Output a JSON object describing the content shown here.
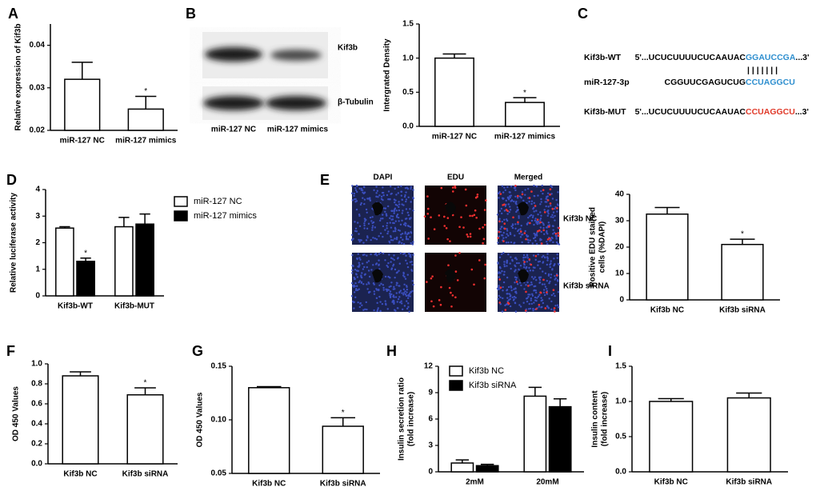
{
  "blot": {
    "panel": "B",
    "bands": [
      "Kif3b",
      "β-Tubulin"
    ],
    "lanes": [
      "miR-127 NC",
      "miR-127 mimics"
    ]
  },
  "sequences": {
    "panel": "C",
    "pairing": "| | | | | | |",
    "rows": [
      {
        "label": "Kif3b-WT",
        "seq": "5'...UCUCUUUUCUCAAUAC",
        "site": "GGAUCCGA",
        "end": "...3'",
        "site_color": "#2f8fcf"
      },
      {
        "label": "miR-127-3p",
        "seq": "CGGUUCGAGUCUG",
        "site": "CCUAGGCU",
        "site_color": "#2f8fcf"
      },
      {
        "label": "Kif3b-MUT",
        "seq": "5'...UCUCUUUUCUCAAUAC",
        "site": "CCUAGGCU",
        "end": "...3'",
        "site_color": "#e03a2a"
      }
    ]
  },
  "microscopy": {
    "panel": "E",
    "channels": [
      "DAPI",
      "EDU",
      "Merged"
    ],
    "conditions": [
      "Kif3b NC",
      "Kif3b siRNA"
    ]
  },
  "chart_data": [
    {
      "panel": "A",
      "type": "bar",
      "ylabel": [
        "Relative expression of Kif3b"
      ],
      "categories": [
        "miR-127 NC",
        "miR-127 mimics"
      ],
      "values": [
        0.032,
        0.025
      ],
      "errors": [
        0.004,
        0.003
      ],
      "color": "#ffffff",
      "ylim": [
        0.02,
        0.045
      ],
      "yticks": [
        0.02,
        0.03,
        0.04
      ],
      "annotations": [
        {
          "text": "*",
          "category": "miR-127 mimics"
        }
      ]
    },
    {
      "type": "bar",
      "ylabel": [
        "Intergrated Density"
      ],
      "categories": [
        "miR-127 NC",
        "miR-127 mimics"
      ],
      "values": [
        1.0,
        0.35
      ],
      "errors": [
        0.06,
        0.07
      ],
      "color": "#ffffff",
      "ylim": [
        0,
        1.5
      ],
      "yticks": [
        {
          "value": 0,
          "label": "0.0"
        },
        0.5,
        {
          "value": 1,
          "label": "1.0"
        },
        1.5
      ],
      "annotations": [
        {
          "text": "*",
          "category": "miR-127 mimics"
        }
      ]
    },
    {
      "panel": "D",
      "type": "grouped_bar",
      "ylabel": [
        "Relative luciferase activity"
      ],
      "categories": [
        "Kif3b-WT",
        "Kif3b-MUT"
      ],
      "series": [
        {
          "name": "miR-127 NC",
          "color": "#ffffff",
          "values": [
            2.55,
            2.6
          ],
          "errors": [
            0.05,
            0.35
          ]
        },
        {
          "name": "miR-127 mimics",
          "color": "#000000",
          "values": [
            1.3,
            2.7
          ],
          "errors": [
            0.12,
            0.38
          ]
        }
      ],
      "ylim": [
        0,
        4
      ],
      "yticks": [
        0,
        1,
        2,
        3,
        4
      ],
      "annotations": [
        {
          "text": "*",
          "category": "Kif3b-WT",
          "series": "miR-127 mimics"
        }
      ]
    },
    {
      "type": "bar",
      "ylabel": [
        "Positive EDU stained",
        "cells (%DAPI)"
      ],
      "categories": [
        "Kif3b NC",
        "Kif3b siRNA"
      ],
      "values": [
        32.5,
        21
      ],
      "errors": [
        2.5,
        2
      ],
      "color": "#ffffff",
      "ylim": [
        0,
        40
      ],
      "yticks": [
        0,
        10,
        20,
        30,
        40
      ],
      "annotations": [
        {
          "text": "*",
          "category": "Kif3b siRNA"
        }
      ]
    },
    {
      "panel": "F",
      "type": "bar",
      "ylabel": [
        "OD 450 Values"
      ],
      "categories": [
        "Kif3b NC",
        "Kif3b siRNA"
      ],
      "values": [
        0.88,
        0.69
      ],
      "errors": [
        0.04,
        0.07
      ],
      "color": "#ffffff",
      "ylim": [
        0,
        1
      ],
      "yticks": [
        {
          "value": 0,
          "label": "0.0"
        },
        0.2,
        0.4,
        0.6,
        0.8,
        {
          "value": 1,
          "label": "1.0"
        }
      ],
      "annotations": [
        {
          "text": "*",
          "category": "Kif3b siRNA"
        }
      ]
    },
    {
      "panel": "G",
      "type": "bar",
      "ylabel": [
        "OD 450 Values"
      ],
      "categories": [
        "Kif3b NC",
        "Kif3b siRNA"
      ],
      "values": [
        0.13,
        0.094
      ],
      "errors": [
        0.001,
        0.008
      ],
      "color": "#ffffff",
      "ylim": [
        0.05,
        0.15
      ],
      "yticks": [
        0.05,
        {
          "value": 0.1,
          "label": "0.10"
        },
        0.15
      ],
      "annotations": [
        {
          "text": "*",
          "category": "Kif3b siRNA"
        }
      ]
    },
    {
      "panel": "H",
      "type": "grouped_bar",
      "ylabel": [
        "Insulin secretion ratio",
        "(fold increase)"
      ],
      "categories": [
        "2mM",
        "20mM"
      ],
      "series": [
        {
          "name": "Kif3b NC",
          "color": "#ffffff",
          "values": [
            1.0,
            8.6
          ],
          "errors": [
            0.35,
            1.0
          ]
        },
        {
          "name": "Kif3b siRNA",
          "color": "#000000",
          "values": [
            0.7,
            7.4
          ],
          "errors": [
            0.15,
            0.9
          ]
        }
      ],
      "ylim": [
        0,
        12
      ],
      "yticks": [
        0,
        3,
        6,
        9,
        12
      ]
    },
    {
      "panel": "I",
      "type": "bar",
      "ylabel": [
        "Insulin content",
        "(fold increase)"
      ],
      "categories": [
        "Kif3b NC",
        "Kif3b siRNA"
      ],
      "values": [
        1.0,
        1.05
      ],
      "errors": [
        0.04,
        0.07
      ],
      "color": "#ffffff",
      "ylim": [
        0,
        1.5
      ],
      "yticks": [
        {
          "value": 0,
          "label": "0.0"
        },
        0.5,
        {
          "value": 1,
          "label": "1.0"
        },
        1.5
      ]
    }
  ]
}
